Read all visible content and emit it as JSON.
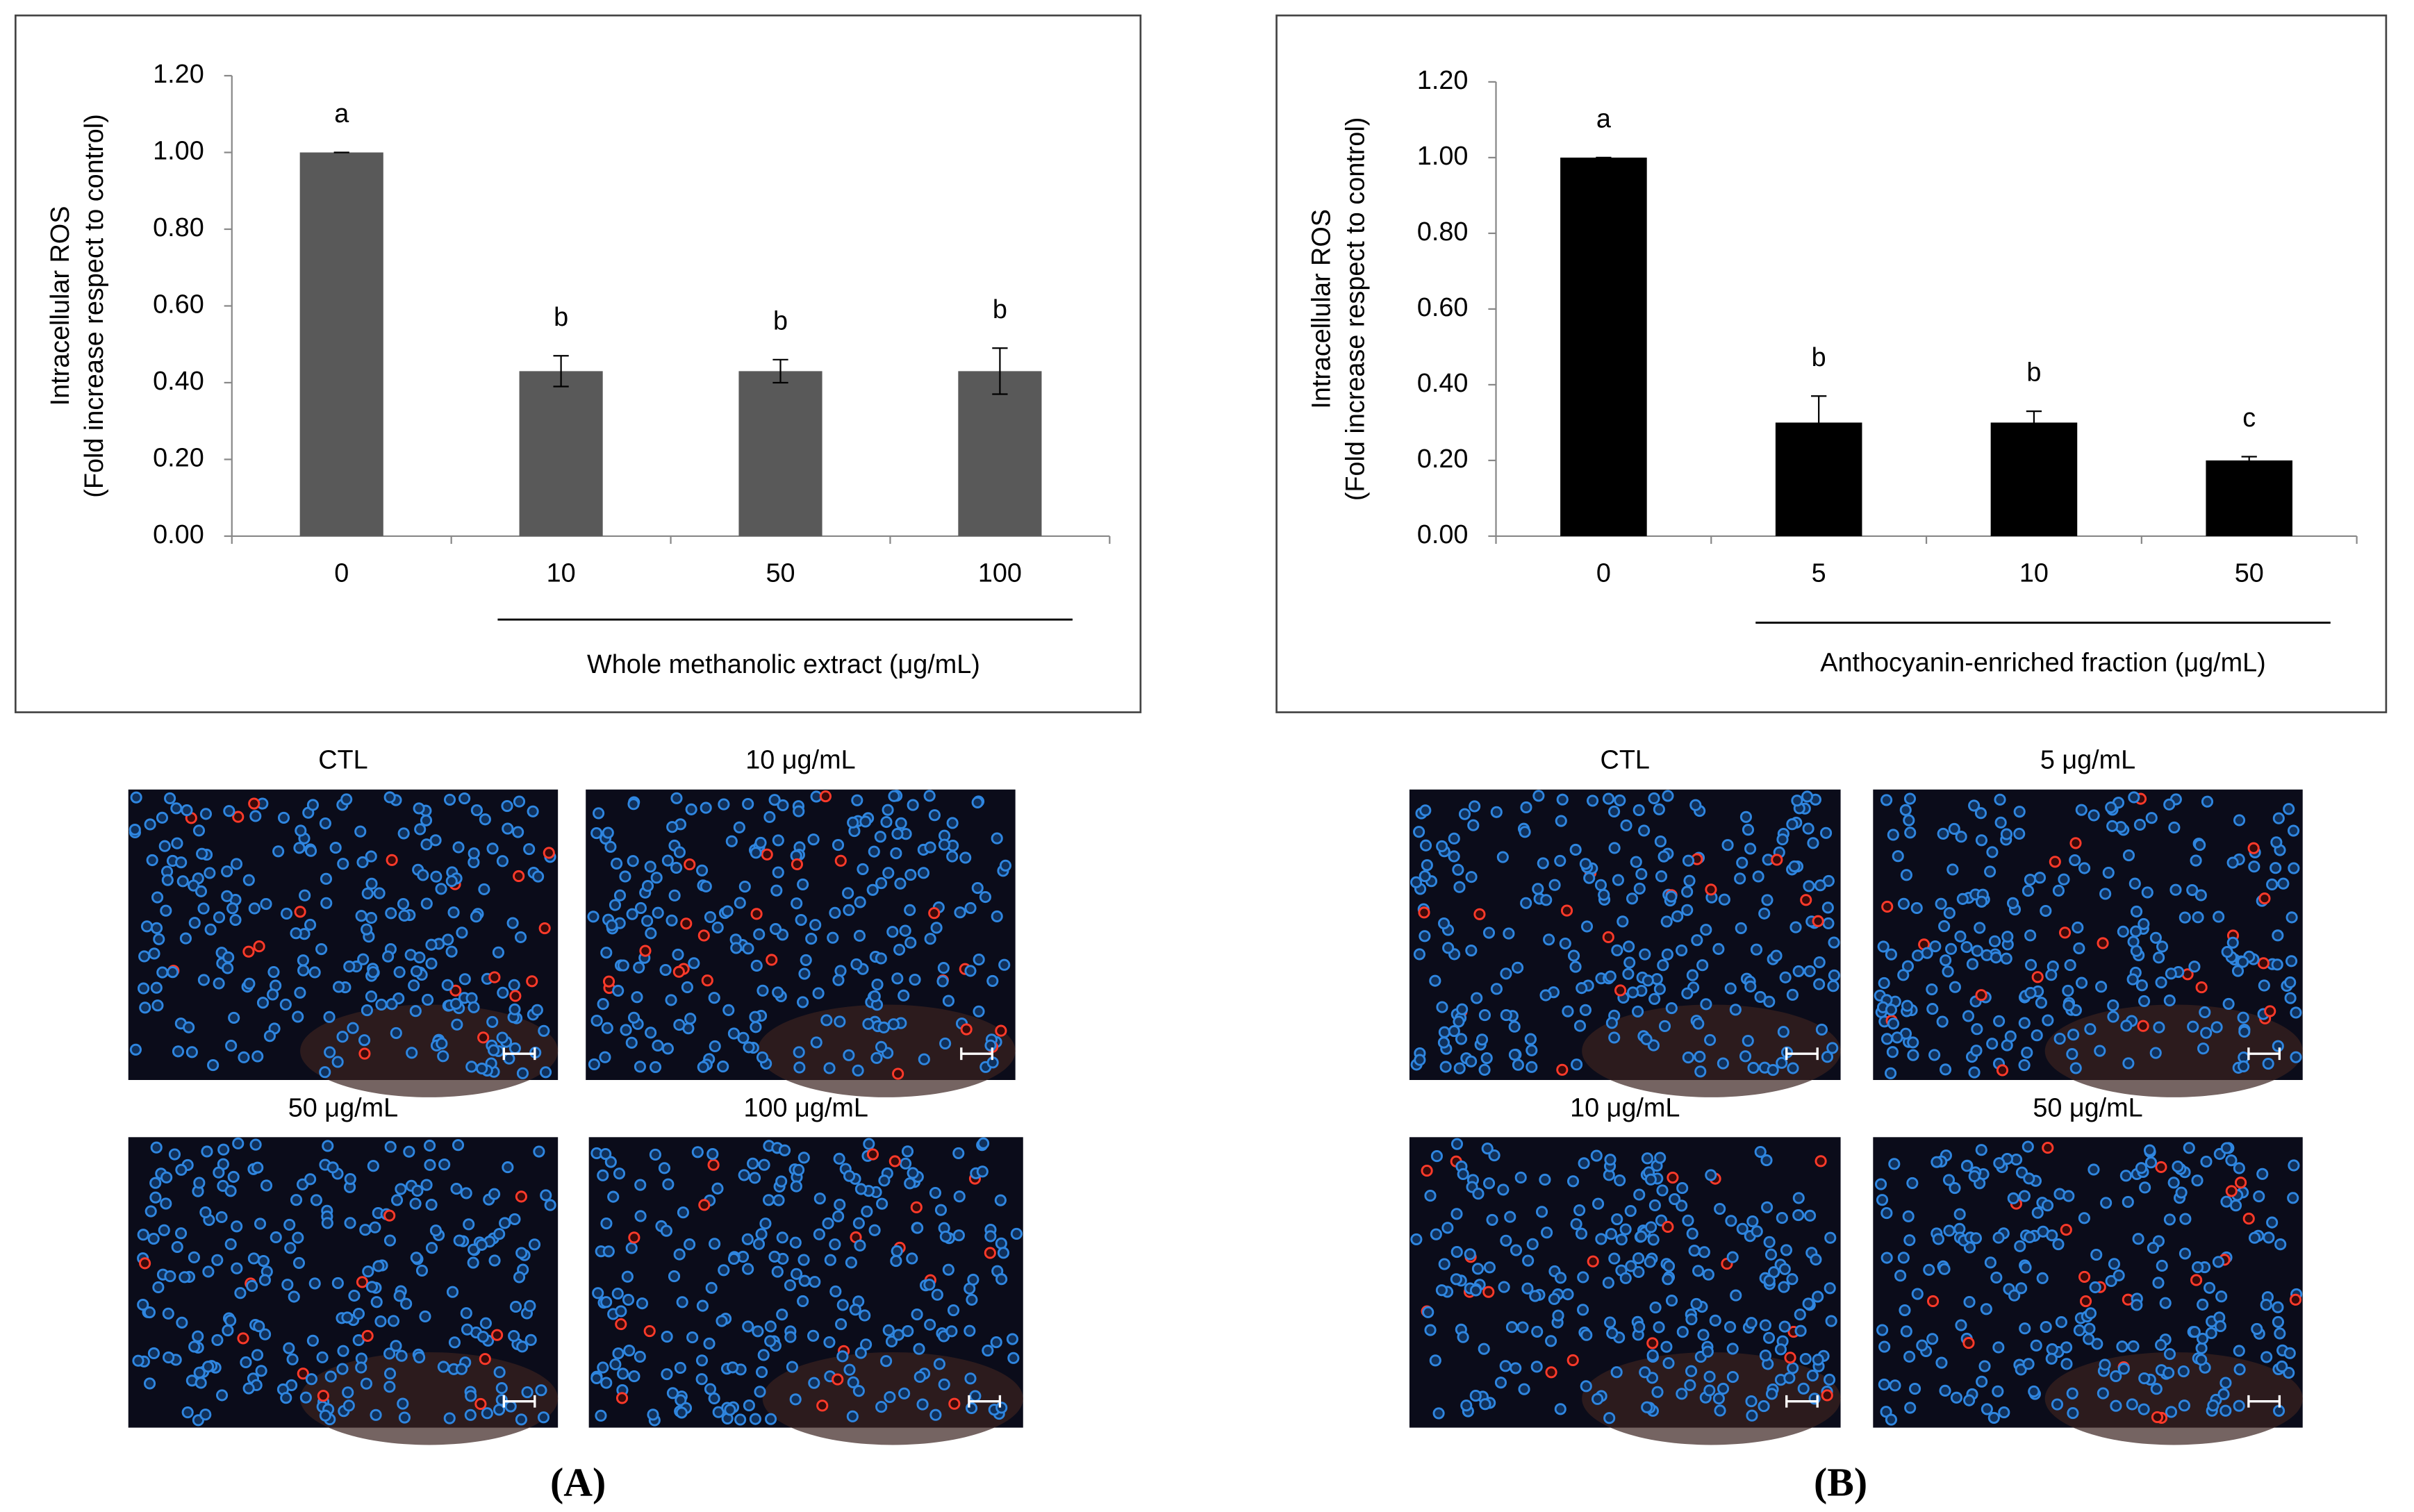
{
  "chart_data": [
    {
      "type": "bar",
      "ylabel": [
        "Intracellular ROS",
        "(Fold increase respect to control)"
      ],
      "xlabel": "Whole methanolic extract (μg/mL)",
      "categories": [
        "0",
        "10",
        "50",
        "100"
      ],
      "values": [
        1.0,
        0.43,
        0.43,
        0.43
      ],
      "errors": [
        0,
        0.04,
        0.03,
        0.06
      ],
      "annotations": [
        "a",
        "b",
        "b",
        "b"
      ],
      "color": "#595959",
      "ylim": [
        0,
        1.2
      ],
      "yticks": [
        {
          "value": 0,
          "label": "0.00"
        },
        {
          "value": 0.2,
          "label": "0.20"
        },
        {
          "value": 0.4,
          "label": "0.40"
        },
        {
          "value": 0.6,
          "label": "0.60"
        },
        {
          "value": 0.8,
          "label": "0.80"
        },
        {
          "value": 1.0,
          "label": "1.00"
        },
        {
          "value": 1.2,
          "label": "1.20"
        }
      ]
    },
    {
      "type": "bar",
      "ylabel": [
        "Intracellular ROS",
        "(Fold increase respect to control)"
      ],
      "xlabel": "Anthocyanin-enriched fraction (μg/mL)",
      "categories": [
        "0",
        "5",
        "10",
        "50"
      ],
      "values": [
        1.0,
        0.3,
        0.3,
        0.2
      ],
      "errors": [
        0,
        0.07,
        0.03,
        0.01
      ],
      "annotations": [
        "a",
        "b",
        "b",
        "c"
      ],
      "color": "#000000",
      "ylim": [
        0,
        1.2
      ],
      "yticks": [
        {
          "value": 0,
          "label": "0.00"
        },
        {
          "value": 0.2,
          "label": "0.20"
        },
        {
          "value": 0.4,
          "label": "0.40"
        },
        {
          "value": 0.6,
          "label": "0.60"
        },
        {
          "value": 0.8,
          "label": "0.80"
        },
        {
          "value": 1.0,
          "label": "1.00"
        },
        {
          "value": 1.2,
          "label": "1.20"
        }
      ]
    }
  ],
  "panels": [
    {
      "label": "(A)",
      "images": [
        "CTL",
        "10 μg/mL",
        "50 μg/mL",
        "100 μg/mL"
      ]
    },
    {
      "label": "(B)",
      "images": [
        "CTL",
        "5 μg/mL",
        "10 μg/mL",
        "50 μg/mL"
      ]
    }
  ]
}
